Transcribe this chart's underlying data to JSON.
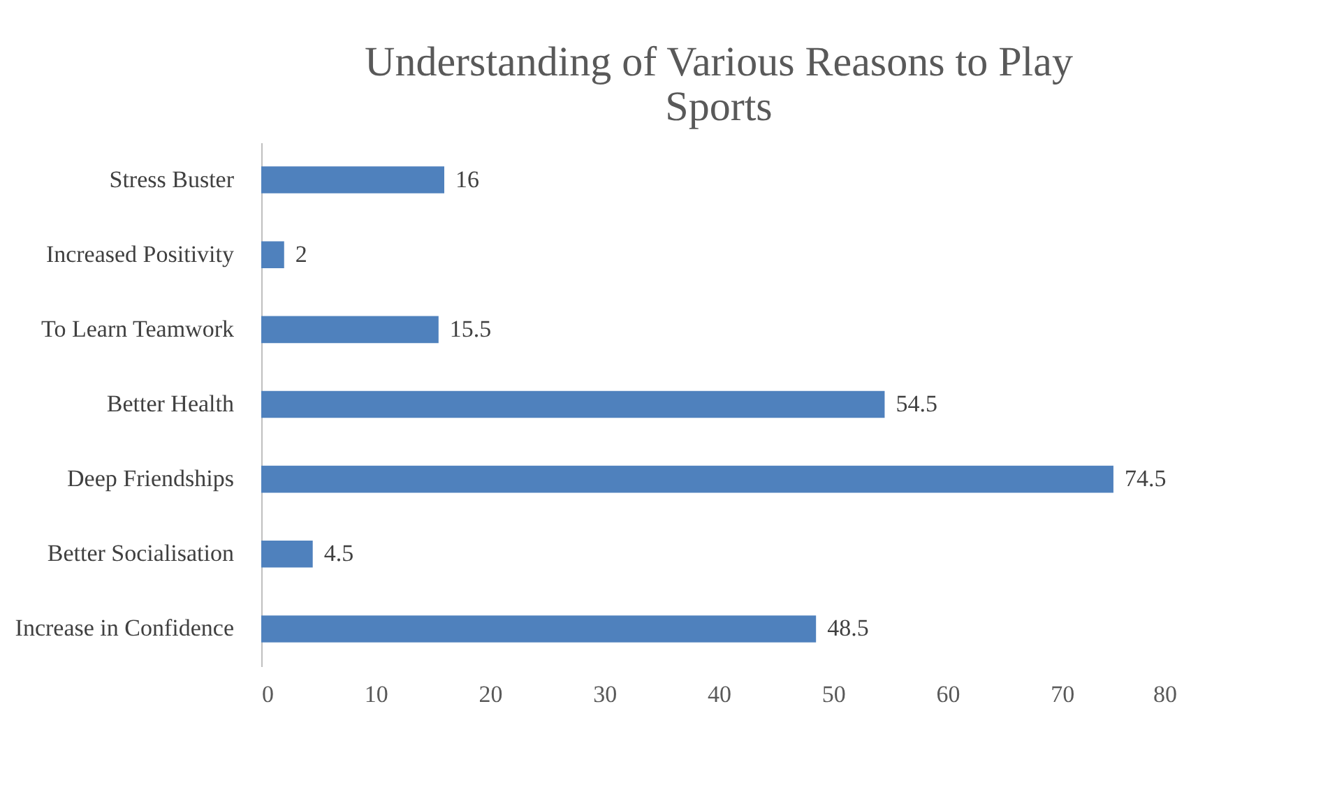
{
  "chart_data": {
    "type": "bar",
    "orientation": "horizontal",
    "title": "Understanding of Various Reasons to Play Sports",
    "categories": [
      "Stress Buster",
      "Increased Positivity",
      "To Learn Teamwork",
      "Better Health",
      "Deep Friendships",
      "Better Socialisation",
      "Increase in Confidence"
    ],
    "values": [
      16,
      2,
      15.5,
      54.5,
      74.5,
      4.5,
      48.5
    ],
    "color": "#4f81bd",
    "xlim": [
      0,
      80
    ],
    "xticks": [
      0,
      10,
      20,
      30,
      40,
      50,
      60,
      70,
      80
    ],
    "grid": false,
    "data_labels": true
  }
}
